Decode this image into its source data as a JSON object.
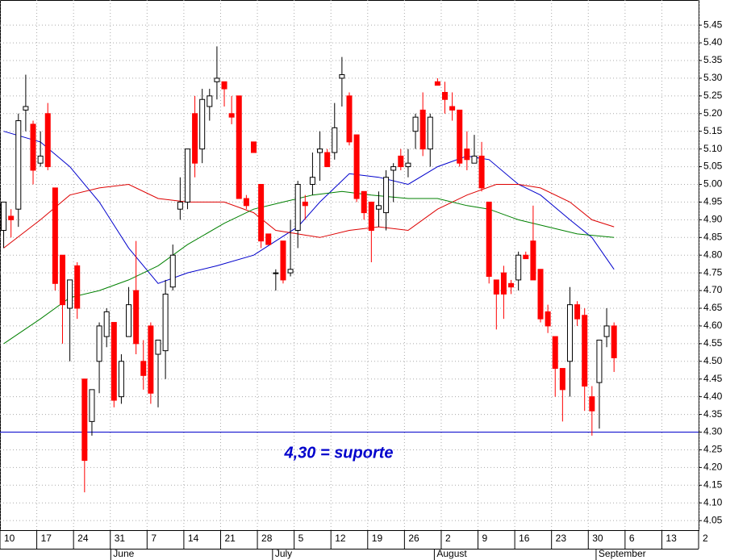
{
  "chart_data": {
    "type": "candlestick",
    "annotation": "4,30 = suporte",
    "support": 4.3,
    "support_color": "#0000cc",
    "up_color": "#ffffff",
    "down_color": "#ff0000",
    "grid": true,
    "ylim": [
      4.023,
      5.521
    ],
    "yticks": [
      4.05,
      {
        "value": 4.1,
        "label": "4.10"
      },
      4.15,
      {
        "value": 4.2,
        "label": "4.20"
      },
      4.25,
      {
        "value": 4.3,
        "label": "4.30"
      },
      4.35,
      {
        "value": 4.4,
        "label": "4.40"
      },
      4.45,
      {
        "value": 4.5,
        "label": "4.50"
      },
      4.55,
      {
        "value": 4.6,
        "label": "4.60"
      },
      4.65,
      {
        "value": 4.7,
        "label": "4.70"
      },
      4.75,
      {
        "value": 4.8,
        "label": "4.80"
      },
      4.85,
      {
        "value": 4.9,
        "label": "4.90"
      },
      4.95,
      {
        "value": 5,
        "label": "5.00"
      },
      5.05,
      {
        "value": 5.1,
        "label": "5.10"
      },
      5.15,
      {
        "value": 5.2,
        "label": "5.20"
      },
      5.25,
      {
        "value": 5.3,
        "label": "5.30"
      },
      5.35,
      {
        "value": 5.4,
        "label": "5.40"
      },
      5.45
    ],
    "xlim": [
      -0.5,
      94.5
    ],
    "xticks": [
      {
        "value": -0.5,
        "label": "10"
      },
      {
        "value": 4.5,
        "label": "17"
      },
      {
        "value": 9.5,
        "label": "24"
      },
      {
        "value": 14.5,
        "label": "31"
      },
      {
        "value": 19.5,
        "label": "7"
      },
      {
        "value": 24.5,
        "label": "14"
      },
      {
        "value": 29.5,
        "label": "21"
      },
      {
        "value": 34.5,
        "label": "28"
      },
      {
        "value": 39.5,
        "label": "5"
      },
      {
        "value": 44.5,
        "label": "12"
      },
      {
        "value": 49.5,
        "label": "19"
      },
      {
        "value": 54.5,
        "label": "26"
      },
      {
        "value": 59.5,
        "label": "2"
      },
      {
        "value": 64.5,
        "label": "9"
      },
      {
        "value": 69.5,
        "label": "16"
      },
      {
        "value": 74.5,
        "label": "23"
      },
      {
        "value": 79.5,
        "label": "30"
      },
      {
        "value": 84.5,
        "label": "6"
      },
      {
        "value": 89.5,
        "label": "13"
      },
      {
        "value": 94.5,
        "label": "2"
      }
    ],
    "months": [
      {
        "value": 15,
        "label": "June"
      },
      {
        "value": 37,
        "label": "July"
      },
      {
        "value": 59,
        "label": "August"
      },
      {
        "value": 81,
        "label": "September"
      }
    ],
    "x": [
      0,
      1,
      2,
      3,
      4,
      5,
      6,
      7,
      8,
      9,
      10,
      11,
      12,
      13,
      14,
      15,
      16,
      17,
      18,
      19,
      20,
      21,
      22,
      23,
      24,
      25,
      26,
      27,
      28,
      29,
      30,
      31,
      32,
      33,
      34,
      35,
      36,
      37,
      38,
      39,
      40,
      41,
      42,
      43,
      44,
      45,
      46,
      47,
      48,
      49,
      50,
      51,
      52,
      53,
      54,
      55,
      56,
      57,
      58,
      59,
      60,
      61,
      62,
      63,
      64,
      65,
      66,
      67,
      68,
      69,
      70,
      71,
      72,
      73,
      74,
      75,
      76,
      77,
      78,
      79,
      80,
      81,
      82,
      83
    ],
    "open": [
      4.87,
      4.91,
      4.93,
      5.21,
      5.17,
      5.06,
      5.2,
      4.99,
      4.8,
      4.65,
      4.77,
      4.45,
      4.33,
      4.5,
      4.57,
      4.61,
      4.4,
      4.57,
      4.7,
      4.5,
      4.6,
      4.52,
      4.53,
      4.71,
      4.93,
      4.95,
      5.2,
      5.1,
      5.22,
      5.29,
      5.29,
      5.2,
      5.25,
      4.96,
      5.12,
      5.0,
      4.86,
      4.75,
      4.84,
      4.75,
      4.87,
      4.95,
      5.0,
      5.09,
      5.09,
      5.09,
      5.3,
      5.25,
      5.14,
      4.98,
      4.95,
      4.93,
      4.92,
      5.04,
      5.08,
      5.05,
      5.15,
      5.21,
      5.1,
      5.29,
      5.26,
      5.22,
      5.21,
      5.1,
      5.06,
      5.08,
      4.95,
      4.73,
      4.75,
      4.72,
      4.73,
      4.8,
      4.84,
      4.76,
      4.64,
      4.57,
      4.48,
      4.5,
      4.66,
      4.63,
      4.4,
      4.44,
      4.57,
      4.6
    ],
    "high": [
      4.95,
      4.93,
      5.2,
      5.31,
      5.18,
      5.15,
      5.23,
      4.99,
      4.8,
      4.73,
      4.78,
      4.45,
      4.42,
      4.61,
      4.65,
      4.61,
      4.52,
      4.71,
      4.84,
      4.56,
      4.61,
      4.56,
      4.73,
      4.83,
      5.02,
      5.1,
      5.25,
      5.27,
      5.27,
      5.39,
      5.29,
      5.25,
      5.25,
      4.97,
      5.12,
      5.0,
      4.86,
      4.76,
      4.84,
      4.9,
      5.01,
      4.97,
      5.09,
      5.15,
      5.1,
      5.23,
      5.36,
      5.26,
      5.14,
      4.98,
      4.95,
      4.98,
      5.04,
      5.06,
      5.1,
      5.1,
      5.2,
      5.26,
      5.2,
      5.3,
      5.29,
      5.26,
      5.21,
      5.15,
      5.14,
      5.12,
      4.95,
      4.73,
      4.77,
      4.73,
      4.81,
      4.81,
      4.94,
      4.76,
      4.66,
      4.57,
      4.48,
      4.71,
      4.67,
      4.65,
      4.43,
      4.56,
      4.65,
      4.61
    ],
    "low": [
      4.82,
      4.85,
      4.88,
      5.15,
      5.0,
      5.05,
      5.04,
      4.7,
      4.55,
      4.5,
      4.62,
      4.13,
      4.29,
      4.41,
      4.54,
      4.37,
      4.38,
      4.57,
      4.52,
      4.42,
      4.38,
      4.37,
      4.45,
      4.7,
      4.9,
      4.93,
      5.02,
      5.06,
      5.18,
      5.24,
      5.22,
      5.17,
      4.96,
      4.93,
      5.09,
      4.82,
      4.83,
      4.7,
      4.72,
      4.74,
      4.82,
      4.9,
      4.97,
      5.01,
      5.05,
      5.07,
      5.22,
      5.11,
      4.95,
      4.9,
      4.78,
      4.88,
      4.87,
      4.95,
      5.04,
      5.02,
      5.1,
      5.08,
      5.05,
      5.28,
      5.2,
      5.18,
      5.05,
      5.04,
      5.06,
      4.98,
      4.72,
      4.59,
      4.62,
      4.69,
      4.7,
      4.79,
      4.73,
      4.61,
      4.58,
      4.4,
      4.33,
      4.4,
      4.6,
      4.36,
      4.29,
      4.31,
      4.54,
      4.47
    ],
    "close": [
      4.95,
      4.9,
      5.18,
      5.22,
      5.04,
      5.08,
      5.05,
      4.72,
      4.66,
      4.73,
      4.65,
      4.22,
      4.42,
      4.6,
      4.64,
      4.39,
      4.5,
      4.66,
      4.55,
      4.46,
      4.41,
      4.56,
      4.69,
      4.8,
      4.95,
      5.1,
      5.06,
      5.24,
      5.25,
      5.3,
      5.27,
      5.19,
      4.96,
      4.94,
      5.09,
      4.84,
      4.83,
      4.75,
      4.73,
      4.76,
      5.0,
      4.94,
      5.02,
      5.1,
      5.05,
      5.16,
      5.31,
      5.12,
      4.96,
      4.92,
      4.87,
      4.94,
      5.02,
      5.05,
      5.05,
      5.06,
      5.19,
      5.1,
      5.19,
      5.28,
      5.24,
      5.21,
      5.06,
      5.07,
      5.08,
      4.99,
      4.74,
      4.69,
      4.69,
      4.71,
      4.8,
      4.79,
      4.73,
      4.62,
      4.6,
      4.48,
      4.42,
      4.66,
      4.62,
      4.43,
      4.36,
      4.56,
      4.6,
      4.51
    ],
    "series": [
      {
        "color": "#0000cc",
        "x": [
          0,
          5,
          9,
          13,
          17,
          21,
          25,
          29,
          34,
          37,
          40,
          43,
          47,
          51,
          55,
          59,
          63,
          66,
          70,
          73,
          77,
          80,
          83
        ],
        "values": [
          5.15,
          5.12,
          5.05,
          4.95,
          4.82,
          4.72,
          4.75,
          4.77,
          4.8,
          4.84,
          4.88,
          4.95,
          5.03,
          5.02,
          5.0,
          5.05,
          5.08,
          5.07,
          5.0,
          4.97,
          4.9,
          4.85,
          4.76
        ]
      },
      {
        "color": "#dd0000",
        "x": [
          0,
          5,
          9,
          13,
          17,
          21,
          25,
          30,
          34,
          37,
          40,
          43,
          47,
          51,
          55,
          59,
          63,
          67,
          70,
          73,
          77,
          80,
          83
        ],
        "values": [
          4.82,
          4.9,
          4.97,
          4.99,
          5.0,
          4.96,
          4.95,
          4.95,
          4.92,
          4.87,
          4.86,
          4.85,
          4.87,
          4.88,
          4.87,
          4.93,
          4.97,
          5.0,
          5.0,
          4.99,
          4.95,
          4.9,
          4.88
        ]
      },
      {
        "color": "#008000",
        "x": [
          0,
          5,
          9,
          13,
          17,
          21,
          25,
          30,
          34,
          38,
          42,
          46,
          50,
          55,
          59,
          63,
          66,
          70,
          74,
          78,
          83
        ],
        "values": [
          4.55,
          4.62,
          4.68,
          4.7,
          4.73,
          4.77,
          4.83,
          4.89,
          4.93,
          4.95,
          4.97,
          4.98,
          4.97,
          4.96,
          4.96,
          4.94,
          4.93,
          4.9,
          4.88,
          4.86,
          4.85
        ]
      }
    ]
  }
}
